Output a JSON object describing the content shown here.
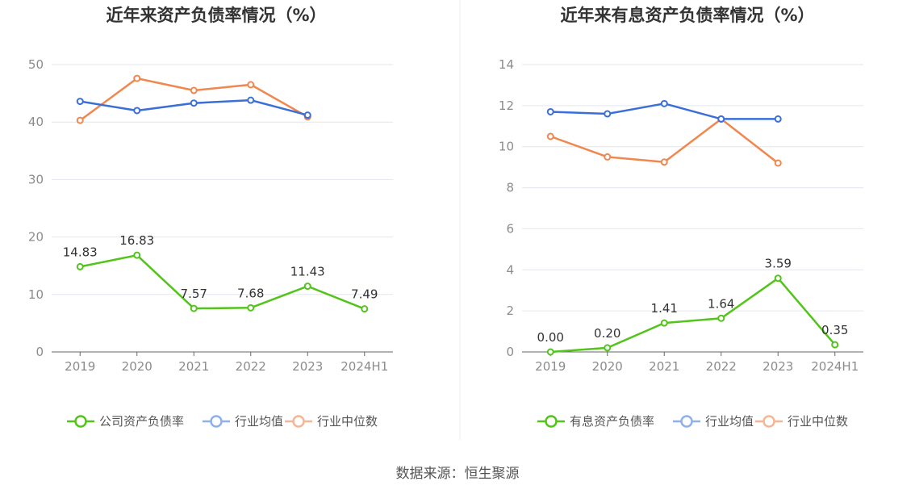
{
  "source_text": "数据来源：恒生聚源",
  "chart_data": [
    {
      "type": "line",
      "title": "近年来资产负债率情况（%）",
      "categories": [
        "2019",
        "2020",
        "2021",
        "2022",
        "2023",
        "2024H1"
      ],
      "ylim": [
        0,
        50
      ],
      "yticks": [
        0,
        10,
        20,
        30,
        40,
        50
      ],
      "series": [
        {
          "name": "公司资产负债率",
          "color": "#52c41a",
          "values": [
            14.83,
            16.83,
            7.57,
            7.68,
            11.43,
            7.49
          ],
          "labels": [
            "14.83",
            "16.83",
            "7.57",
            "7.68",
            "11.43",
            "7.49"
          ]
        },
        {
          "name": "行业均值",
          "color": "#3a6fd8",
          "values": [
            43.6,
            42.0,
            43.3,
            43.8,
            41.2,
            null
          ]
        },
        {
          "name": "行业中位数",
          "color": "#f0874f",
          "values": [
            40.3,
            47.6,
            45.5,
            46.5,
            40.9,
            null
          ]
        }
      ]
    },
    {
      "type": "line",
      "title": "近年来有息资产负债率情况（%）",
      "categories": [
        "2019",
        "2020",
        "2021",
        "2022",
        "2023",
        "2024H1"
      ],
      "ylim": [
        0,
        14
      ],
      "yticks": [
        0,
        2,
        4,
        6,
        8,
        10,
        12,
        14
      ],
      "series": [
        {
          "name": "有息资产负债率",
          "color": "#52c41a",
          "values": [
            0.0,
            0.2,
            1.41,
            1.64,
            3.59,
            0.35
          ],
          "labels": [
            "0.00",
            "0.20",
            "1.41",
            "1.64",
            "3.59",
            "0.35"
          ]
        },
        {
          "name": "行业均值",
          "color": "#3a6fd8",
          "values": [
            11.7,
            11.6,
            12.1,
            11.35,
            11.35,
            null
          ]
        },
        {
          "name": "行业中位数",
          "color": "#f0874f",
          "values": [
            10.5,
            9.5,
            9.25,
            11.35,
            9.2,
            null
          ]
        }
      ]
    }
  ]
}
